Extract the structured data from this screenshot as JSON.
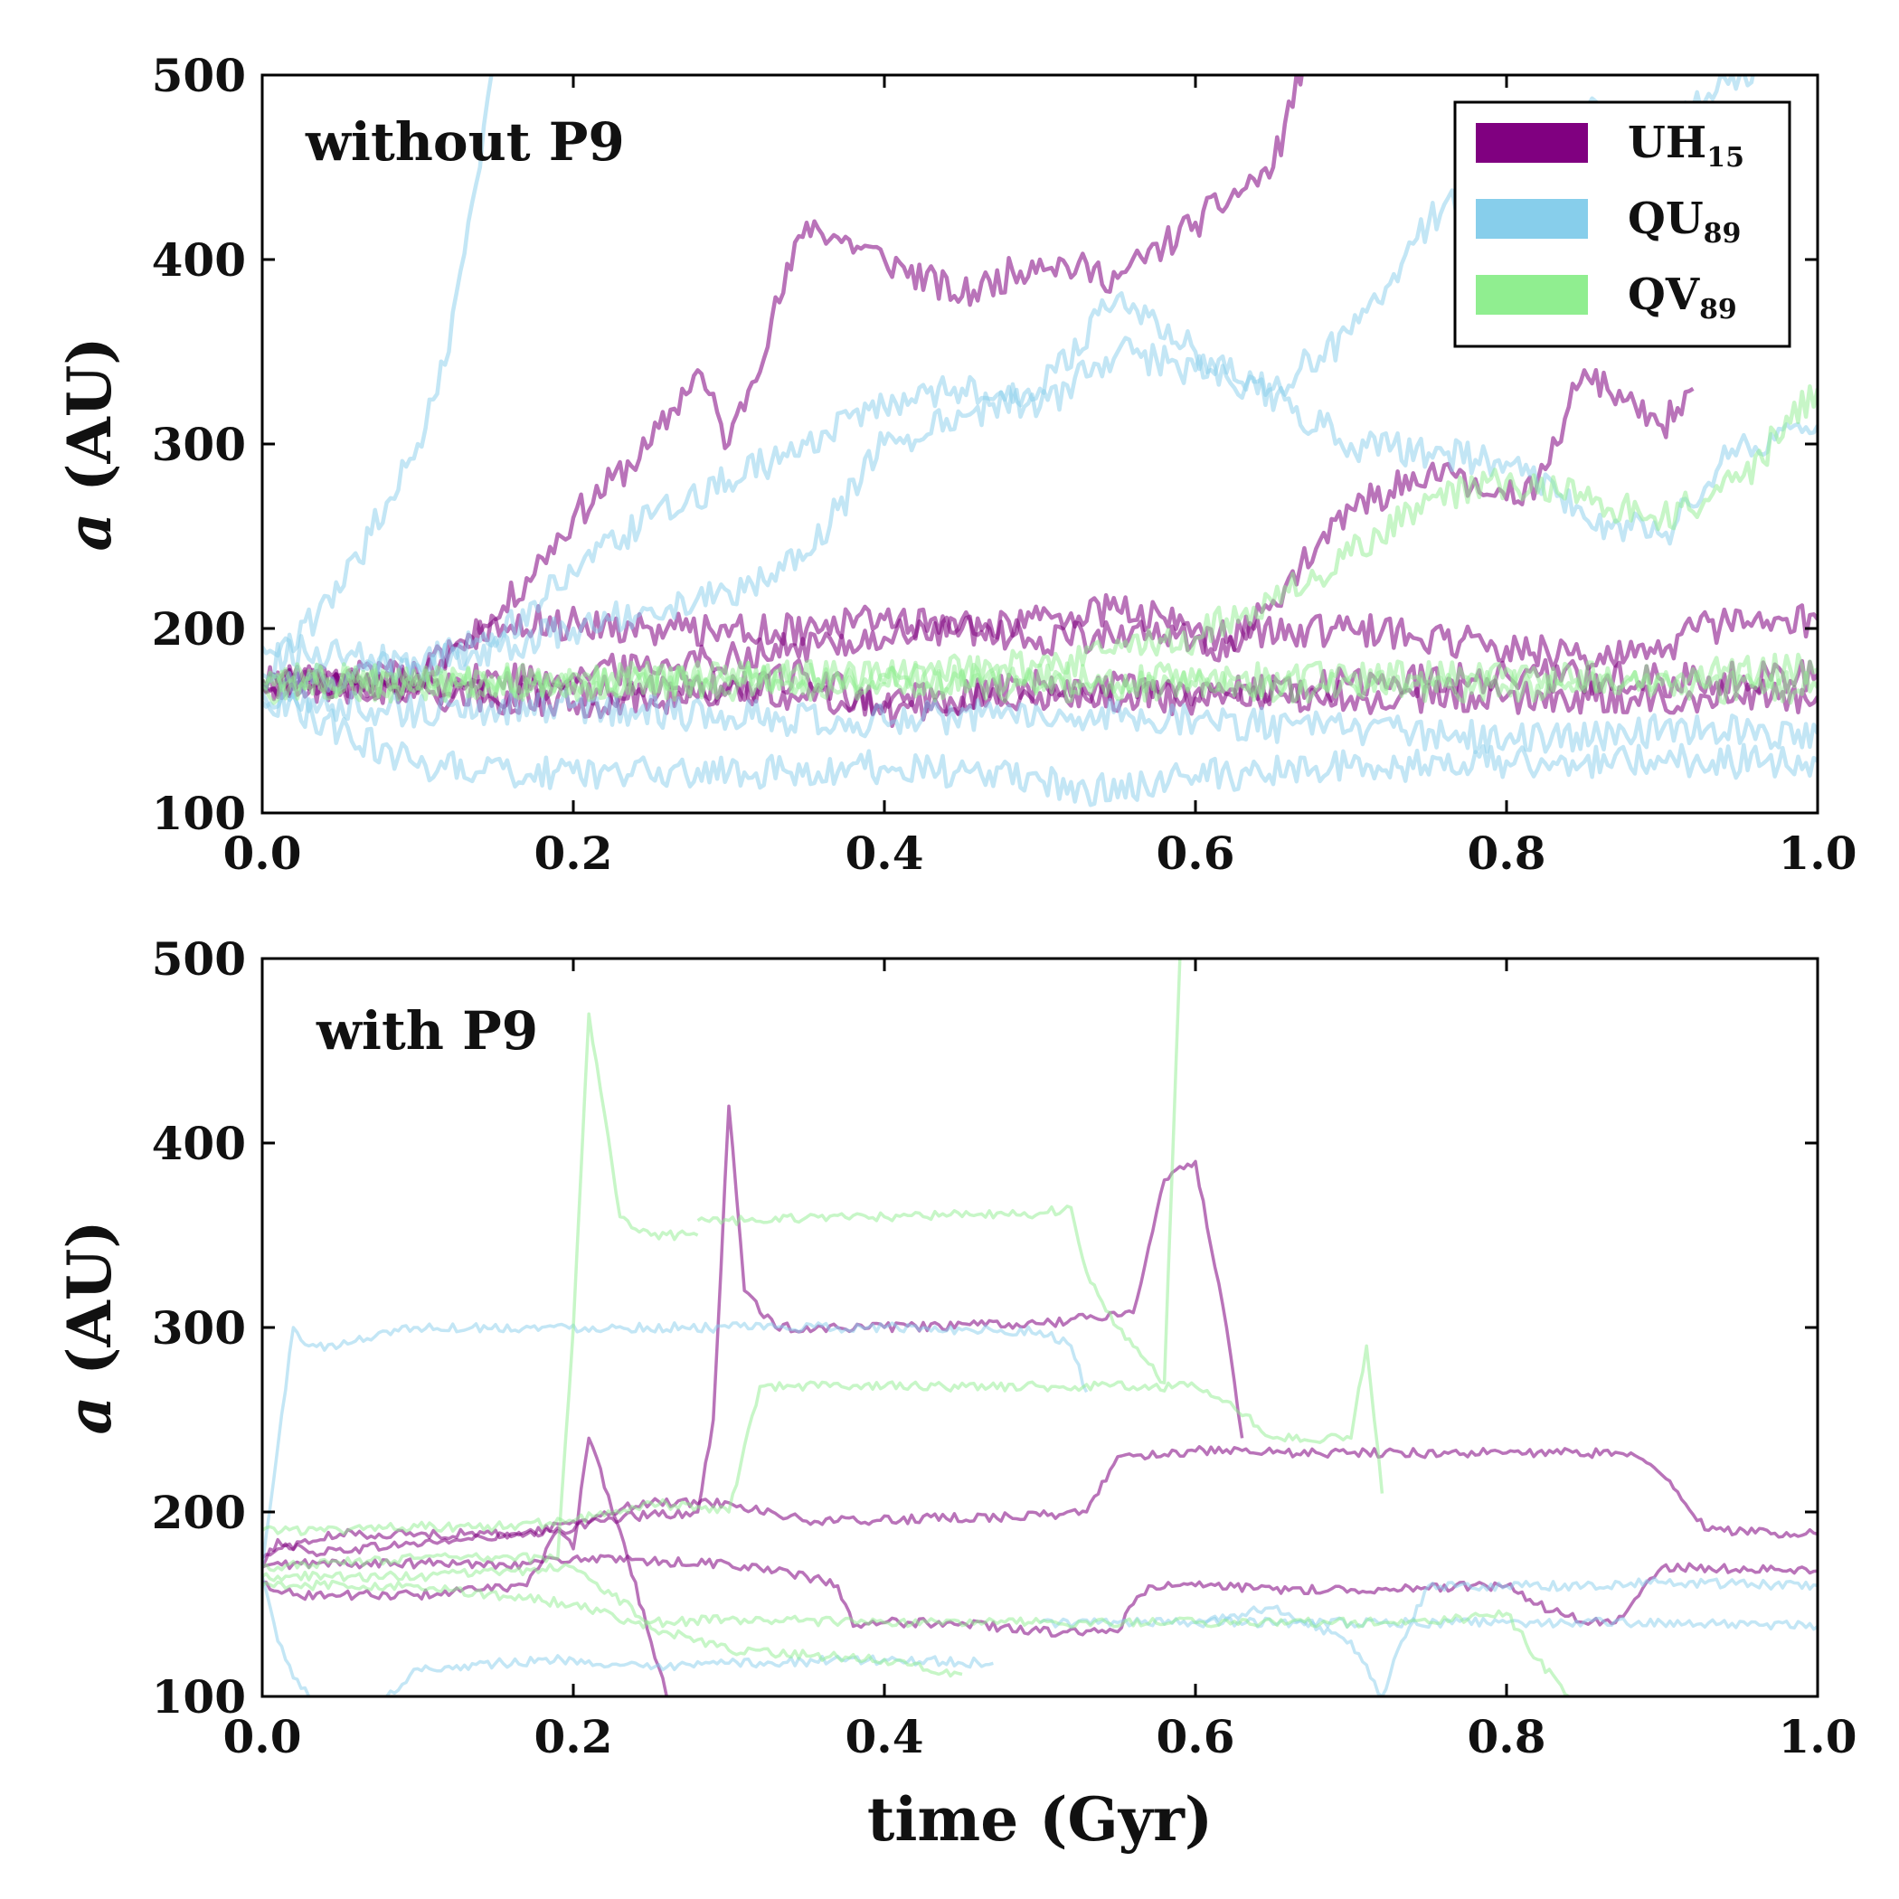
{
  "chart_data": [
    {
      "type": "line",
      "panel_label": "without P9",
      "xlabel": "",
      "ylabel": "a (AU)",
      "ylabel_var": "a",
      "ylabel_unit": "(AU)",
      "xlim": [
        0.0,
        1.0
      ],
      "ylim": [
        100,
        500
      ],
      "xticks": [
        0.0,
        0.2,
        0.4,
        0.6,
        0.8,
        1.0
      ],
      "xtick_labels": [
        "0.0",
        "0.2",
        "0.4",
        "0.6",
        "0.8",
        "1.0"
      ],
      "yticks": [
        100,
        200,
        300,
        400,
        500
      ],
      "ytick_labels": [
        "100",
        "200",
        "300",
        "400",
        "500"
      ],
      "legend": {
        "position": "top-right",
        "entries": [
          {
            "base": "UH",
            "sub": "15",
            "color": "#800080"
          },
          {
            "base": "QU",
            "sub": "89",
            "color": "#87CEEB"
          },
          {
            "base": "QV",
            "sub": "89",
            "color": "#90EE90"
          }
        ]
      },
      "series": [
        {
          "name": "UH15",
          "color": "#800080",
          "x": [
            0,
            0.1,
            0.15,
            0.2,
            0.25,
            0.28,
            0.3,
            0.35,
            0.4,
            0.45,
            0.5,
            0.55,
            0.6,
            0.65,
            0.67,
            0.7
          ],
          "y": [
            170,
            175,
            205,
            260,
            300,
            340,
            300,
            420,
            400,
            380,
            400,
            390,
            420,
            450,
            510,
            520
          ]
        },
        {
          "name": "UH15",
          "color": "#800080",
          "x": [
            0,
            0.1,
            0.2,
            0.3,
            0.4,
            0.5,
            0.55,
            0.6,
            0.62,
            0.65,
            0.7,
            0.75,
            0.8,
            0.82,
            0.85,
            0.9,
            0.92
          ],
          "y": [
            172,
            170,
            175,
            185,
            195,
            205,
            210,
            200,
            185,
            215,
            265,
            285,
            270,
            280,
            340,
            310,
            330
          ]
        },
        {
          "name": "UH15",
          "color": "#800080",
          "x": [
            0,
            0.1,
            0.15,
            0.25,
            0.35,
            0.4,
            0.45,
            0.5,
            0.6,
            0.7,
            0.8,
            0.85,
            0.9,
            0.92,
            1.0
          ],
          "y": [
            170,
            175,
            205,
            200,
            200,
            205,
            200,
            195,
            195,
            200,
            190,
            185,
            185,
            200,
            205
          ]
        },
        {
          "name": "UH15",
          "color": "#800080",
          "x": [
            0,
            0.2,
            0.3,
            0.4,
            0.5,
            0.6,
            0.7,
            0.8,
            0.9,
            1.0
          ],
          "y": [
            170,
            165,
            168,
            160,
            165,
            162,
            163,
            163,
            163,
            163
          ]
        },
        {
          "name": "UH15",
          "color": "#800080",
          "x": [
            0,
            0.1,
            0.2,
            0.3,
            0.35,
            0.4,
            0.5,
            0.6,
            0.7,
            0.8,
            0.9,
            1.0
          ],
          "y": [
            172,
            165,
            160,
            165,
            175,
            155,
            170,
            165,
            170,
            175,
            172,
            175
          ]
        },
        {
          "name": "QU89",
          "color": "#87CEEB",
          "x": [
            0,
            0.05,
            0.1,
            0.12,
            0.14,
            0.15
          ],
          "y": [
            175,
            220,
            300,
            350,
            450,
            520
          ]
        },
        {
          "name": "QU89",
          "color": "#87CEEB",
          "x": [
            0,
            0.05,
            0.1,
            0.15,
            0.2,
            0.25,
            0.3,
            0.35,
            0.4,
            0.45,
            0.5,
            0.55,
            0.6,
            0.65,
            0.7,
            0.75,
            0.8,
            0.85,
            0.9,
            0.95,
            1.0
          ],
          "y": [
            190,
            185,
            180,
            195,
            230,
            260,
            280,
            300,
            320,
            330,
            320,
            350,
            340,
            330,
            360,
            420,
            460,
            480,
            470,
            500,
            520
          ]
        },
        {
          "name": "QU89",
          "color": "#87CEEB",
          "x": [
            0,
            0.1,
            0.2,
            0.3,
            0.35,
            0.4,
            0.5,
            0.55,
            0.6,
            0.7,
            0.8,
            0.85,
            0.9,
            0.95,
            1.0
          ],
          "y": [
            170,
            180,
            200,
            220,
            240,
            300,
            330,
            380,
            350,
            300,
            290,
            260,
            250,
            300,
            310
          ]
        },
        {
          "name": "QU89",
          "color": "#87CEEB",
          "x": [
            0,
            0.05,
            0.1,
            0.2,
            0.3,
            0.4,
            0.5,
            0.53,
            0.6,
            0.7,
            0.8,
            0.9,
            1.0
          ],
          "y": [
            165,
            145,
            125,
            122,
            122,
            125,
            118,
            112,
            120,
            125,
            128,
            128,
            128
          ]
        },
        {
          "name": "QU89",
          "color": "#87CEEB",
          "x": [
            0,
            0.1,
            0.2,
            0.3,
            0.4,
            0.5,
            0.6,
            0.7,
            0.8,
            0.9,
            1.0
          ],
          "y": [
            160,
            155,
            158,
            152,
            150,
            155,
            150,
            145,
            140,
            145,
            143
          ]
        },
        {
          "name": "QV89",
          "color": "#90EE90",
          "x": [
            0,
            0.2,
            0.4,
            0.6,
            0.8,
            1.0
          ],
          "y": [
            170,
            170,
            170,
            169,
            168,
            168
          ]
        },
        {
          "name": "QV89",
          "color": "#90EE90",
          "x": [
            0,
            0.2,
            0.4,
            0.5,
            0.6,
            0.62,
            0.66,
            0.7,
            0.75,
            0.8,
            0.85,
            0.9,
            0.95,
            1.0
          ],
          "y": [
            168,
            170,
            175,
            180,
            195,
            205,
            220,
            240,
            270,
            280,
            270,
            260,
            280,
            330
          ]
        },
        {
          "name": "QV89",
          "color": "#90EE90",
          "x": [
            0,
            0.3,
            0.6,
            0.9,
            1.0
          ],
          "y": [
            172,
            173,
            172,
            175,
            178
          ]
        }
      ]
    },
    {
      "type": "line",
      "panel_label": "with P9",
      "xlabel": "time (Gyr)",
      "ylabel": "a (AU)",
      "ylabel_var": "a",
      "ylabel_unit": "(AU)",
      "xlim": [
        0.0,
        1.0
      ],
      "ylim": [
        100,
        500
      ],
      "xticks": [
        0.0,
        0.2,
        0.4,
        0.6,
        0.8,
        1.0
      ],
      "xtick_labels": [
        "0.0",
        "0.2",
        "0.4",
        "0.6",
        "0.8",
        "1.0"
      ],
      "yticks": [
        100,
        200,
        300,
        400,
        500
      ],
      "ytick_labels": [
        "100",
        "200",
        "300",
        "400",
        "500"
      ],
      "series": [
        {
          "name": "UH15",
          "color": "#800080",
          "x": [
            0,
            0.01,
            0.03,
            0.2,
            0.22,
            0.25,
            0.3,
            0.35,
            0.37,
            0.5,
            0.53,
            0.55,
            0.6,
            0.65,
            0.8,
            0.88,
            0.9,
            0.93,
            1.0
          ],
          "y": [
            170,
            185,
            178,
            190,
            200,
            205,
            205,
            195,
            195,
            198,
            200,
            230,
            233,
            232,
            232,
            232,
            220,
            190,
            188
          ]
        },
        {
          "name": "UH15",
          "color": "#800080",
          "x": [
            0,
            0.01,
            0.05,
            0.1,
            0.17,
            0.2,
            0.28,
            0.29,
            0.3,
            0.31,
            0.33,
            0.4,
            0.5,
            0.53,
            0.56,
            0.58,
            0.6,
            0.62,
            0.63
          ],
          "y": [
            175,
            180,
            188,
            188,
            188,
            195,
            200,
            250,
            420,
            320,
            300,
            300,
            302,
            305,
            308,
            380,
            390,
            300,
            240
          ]
        },
        {
          "name": "UH15",
          "color": "#800080",
          "x": [
            0,
            0.02,
            0.1,
            0.17,
            0.2,
            0.25,
            0.3,
            0.35,
            0.37,
            0.38,
            0.4,
            0.45,
            0.5,
            0.55,
            0.56,
            0.57,
            0.6,
            0.65,
            0.7,
            0.8,
            0.82,
            0.85,
            0.87,
            0.9,
            1.0
          ],
          "y": [
            170,
            172,
            172,
            172,
            175,
            173,
            172,
            165,
            160,
            138,
            140,
            140,
            135,
            135,
            150,
            160,
            160,
            158,
            158,
            160,
            150,
            140,
            140,
            170,
            168
          ]
        },
        {
          "name": "UH15",
          "color": "#800080",
          "x": [
            0,
            0.02,
            0.1,
            0.17,
            0.19,
            0.2,
            0.21,
            0.23,
            0.26
          ],
          "y": [
            162,
            155,
            155,
            160,
            190,
            180,
            240,
            190,
            100
          ]
        },
        {
          "name": "QU89",
          "color": "#87CEEB",
          "x": [
            0,
            0.02,
            0.03,
            0.05,
            0.08,
            0.1,
            0.3,
            0.4,
            0.5,
            0.52,
            0.53
          ],
          "y": [
            170,
            300,
            290,
            290,
            298,
            300,
            300,
            300,
            298,
            290,
            265
          ]
        },
        {
          "name": "QU89",
          "color": "#87CEEB",
          "x": [
            0,
            0.01,
            0.02,
            0.03
          ],
          "y": [
            165,
            130,
            110,
            100
          ]
        },
        {
          "name": "QU89",
          "color": "#87CEEB",
          "x": [
            0.08,
            0.1,
            0.15,
            0.2,
            0.25,
            0.3,
            0.4,
            0.47
          ],
          "y": [
            100,
            115,
            118,
            120,
            115,
            118,
            120,
            118
          ]
        },
        {
          "name": "QU89",
          "color": "#87CEEB",
          "x": [
            0.6,
            0.65,
            0.7,
            0.72,
            0.73,
            0.75,
            0.8,
            0.85,
            0.9,
            1.0
          ],
          "y": [
            140,
            148,
            130,
            100,
            125,
            160,
            160,
            160,
            162,
            160
          ]
        },
        {
          "name": "QU89",
          "color": "#87CEEB",
          "x": [
            0.5,
            0.55,
            0.6,
            0.7,
            0.8,
            0.9,
            1.0
          ],
          "y": [
            140,
            140,
            140,
            140,
            140,
            140,
            138
          ]
        },
        {
          "name": "QV89",
          "color": "#90EE90",
          "x": [
            0,
            0.1,
            0.19,
            0.2,
            0.21,
            0.23,
            0.25,
            0.28
          ],
          "y": [
            170,
            175,
            175,
            300,
            470,
            360,
            350,
            350
          ]
        },
        {
          "name": "QV89",
          "color": "#90EE90",
          "x": [
            0.28,
            0.3,
            0.4,
            0.5,
            0.52,
            0.53,
            0.55,
            0.58,
            0.59
          ],
          "y": [
            358,
            358,
            360,
            362,
            365,
            330,
            300,
            270,
            500
          ]
        },
        {
          "name": "QV89",
          "color": "#90EE90",
          "x": [
            0,
            0.05,
            0.1,
            0.15,
            0.2,
            0.25,
            0.3,
            0.32,
            0.4,
            0.5,
            0.6,
            0.62,
            0.65,
            0.7,
            0.71,
            0.72
          ],
          "y": [
            190,
            190,
            192,
            192,
            195,
            205,
            200,
            268,
            268,
            268,
            268,
            260,
            240,
            240,
            290,
            210
          ]
        },
        {
          "name": "QV89",
          "color": "#90EE90",
          "x": [
            0,
            0.1,
            0.2,
            0.25,
            0.3,
            0.4,
            0.5,
            0.6,
            0.7,
            0.75,
            0.8,
            0.82,
            0.84
          ],
          "y": [
            165,
            165,
            170,
            140,
            142,
            140,
            140,
            140,
            140,
            140,
            145,
            120,
            100
          ]
        },
        {
          "name": "QV89",
          "color": "#90EE90",
          "x": [
            0,
            0.1,
            0.2,
            0.3,
            0.4,
            0.45
          ],
          "y": [
            160,
            160,
            150,
            125,
            120,
            112
          ]
        }
      ]
    }
  ]
}
